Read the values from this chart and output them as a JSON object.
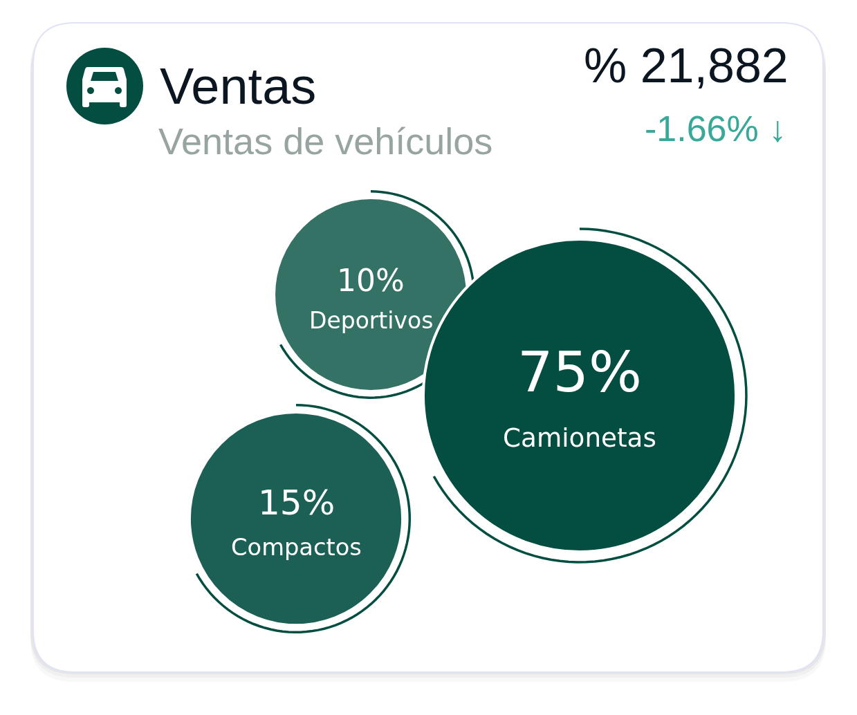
{
  "chart_data": {
    "type": "other",
    "title": "Ventas",
    "subtitle": "Ventas de vehículos",
    "categories": [
      "Deportivos",
      "Camionetas",
      "Compactos"
    ],
    "values": [
      10,
      75,
      15
    ],
    "value_labels": [
      "10%",
      "75%",
      "15%"
    ],
    "colors": [
      "#357266",
      "#034e40",
      "#1c5f55"
    ],
    "annotations": [
      "% 21,882",
      "-1.66% ↓"
    ]
  }
}
